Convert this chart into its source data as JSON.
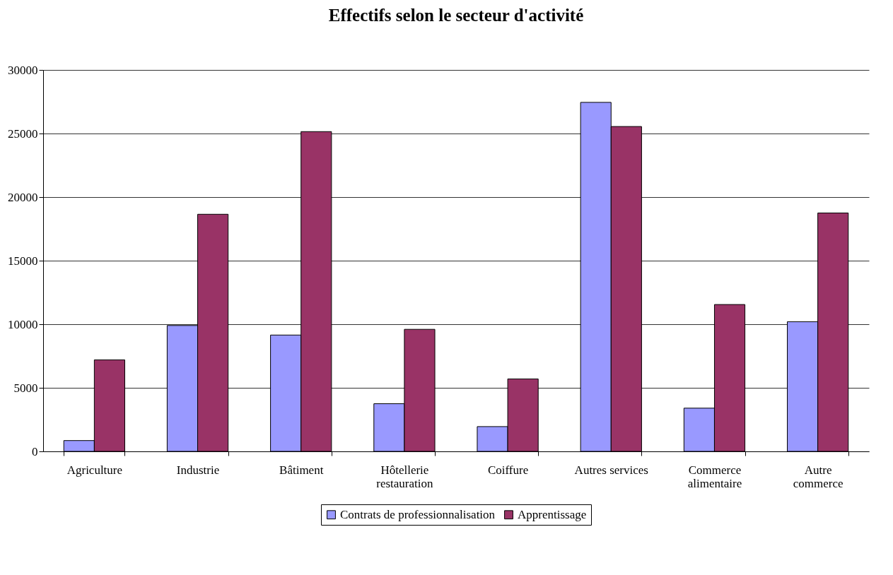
{
  "chart_data": {
    "type": "bar",
    "title": "Effectifs selon le secteur d'activité",
    "categories": [
      "Agriculture",
      "Industrie",
      "Bâtiment",
      "Hôtellerie\nrestauration",
      "Coiffure",
      "Autres services",
      "Commerce\nalimentaire",
      "Autre\ncommerce"
    ],
    "series": [
      {
        "name": "Contrats de professionnalisation",
        "color": "#9999ff",
        "values": [
          850,
          9900,
          9150,
          3750,
          1950,
          27450,
          3400,
          10200
        ]
      },
      {
        "name": "Apprentissage",
        "color": "#993366",
        "values": [
          7200,
          18650,
          25150,
          9600,
          5700,
          25550,
          11550,
          18750
        ]
      }
    ],
    "ylim": [
      0,
      30000
    ],
    "yticks": [
      0,
      5000,
      10000,
      15000,
      20000,
      25000,
      30000
    ],
    "grid": "y",
    "legend": "bottom"
  }
}
